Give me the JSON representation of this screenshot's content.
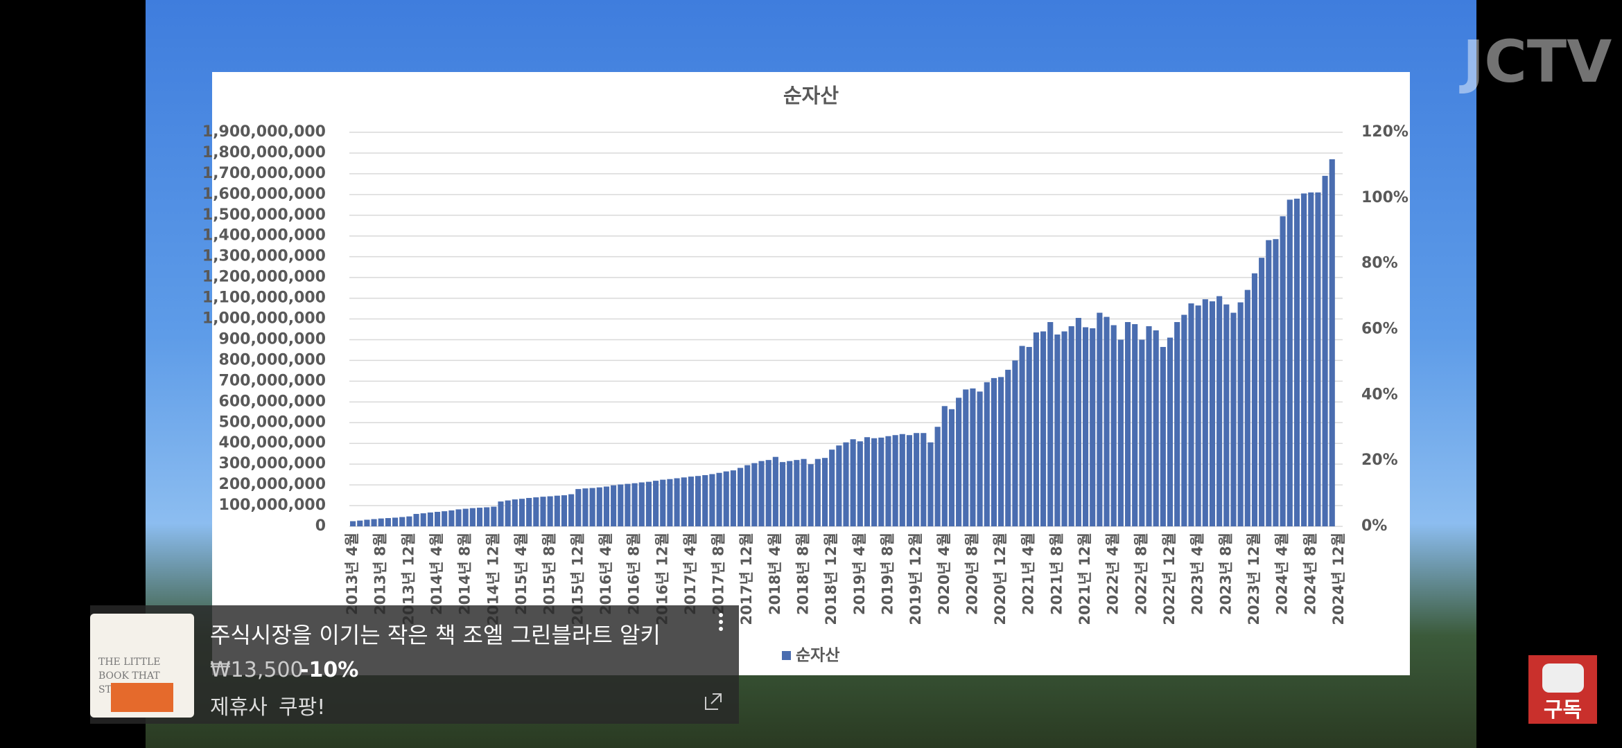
{
  "chart_data": {
    "type": "bar",
    "title": "순자산",
    "categories": [
      "2013년 4월",
      null,
      null,
      null,
      "2013년 8월",
      null,
      null,
      null,
      "2013년 12월",
      null,
      null,
      null,
      "2014년 4월",
      null,
      null,
      null,
      "2014년 8월",
      null,
      null,
      null,
      "2014년 12월",
      null,
      null,
      null,
      "2015년 4월",
      null,
      null,
      null,
      "2015년 8월",
      null,
      null,
      null,
      "2015년 12월",
      null,
      null,
      null,
      "2016년 4월",
      null,
      null,
      null,
      "2016년 8월",
      null,
      null,
      null,
      "2016년 12월",
      null,
      null,
      null,
      "2017년 4월",
      null,
      null,
      null,
      "2017년 8월",
      null,
      null,
      null,
      "2017년 12월",
      null,
      null,
      null,
      "2018년 4월",
      null,
      null,
      null,
      "2018년 8월",
      null,
      null,
      null,
      "2018년 12월",
      null,
      null,
      null,
      "2019년 4월",
      null,
      null,
      null,
      "2019년 8월",
      null,
      null,
      null,
      "2019년 12월",
      null,
      null,
      null,
      "2020년 4월",
      null,
      null,
      null,
      "2020년 8월",
      null,
      null,
      null,
      "2020년 12월",
      null,
      null,
      null,
      "2021년 4월",
      null,
      null,
      null,
      "2021년 8월",
      null,
      null,
      null,
      "2021년 12월",
      null,
      null,
      null,
      "2022년 4월",
      null,
      null,
      null,
      "2022년 8월",
      null,
      null,
      null,
      "2022년 12월",
      null,
      null,
      null,
      "2023년 4월",
      null,
      null,
      null,
      "2023년 8월",
      null,
      null,
      null,
      "2023년 12월",
      null,
      null,
      null,
      "2024년 4월",
      null,
      null,
      null,
      "2024년 8월",
      null,
      null,
      null,
      "2024년 12월"
    ],
    "series": [
      {
        "name": "순자산",
        "color": "#4a6db0",
        "values": [
          25000000,
          28000000,
          32000000,
          35000000,
          38000000,
          40000000,
          42000000,
          45000000,
          48000000,
          60000000,
          63000000,
          67000000,
          70000000,
          73000000,
          77000000,
          82000000,
          85000000,
          88000000,
          90000000,
          92000000,
          95000000,
          120000000,
          125000000,
          130000000,
          133000000,
          137000000,
          140000000,
          143000000,
          145000000,
          148000000,
          150000000,
          155000000,
          180000000,
          183000000,
          185000000,
          188000000,
          192000000,
          198000000,
          202000000,
          205000000,
          208000000,
          212000000,
          215000000,
          220000000,
          225000000,
          228000000,
          232000000,
          236000000,
          240000000,
          243000000,
          247000000,
          252000000,
          258000000,
          265000000,
          270000000,
          282000000,
          295000000,
          305000000,
          315000000,
          320000000,
          335000000,
          310000000,
          315000000,
          320000000,
          325000000,
          300000000,
          325000000,
          330000000,
          370000000,
          390000000,
          405000000,
          420000000,
          410000000,
          430000000,
          425000000,
          428000000,
          435000000,
          440000000,
          445000000,
          440000000,
          450000000,
          450000000,
          405000000,
          480000000,
          580000000,
          565000000,
          620000000,
          660000000,
          665000000,
          650000000,
          695000000,
          715000000,
          720000000,
          755000000,
          800000000,
          870000000,
          865000000,
          935000000,
          940000000,
          985000000,
          925000000,
          940000000,
          965000000,
          1005000000,
          960000000,
          955000000,
          1030000000,
          1010000000,
          970000000,
          900000000,
          985000000,
          975000000,
          900000000,
          965000000,
          945000000,
          865000000,
          910000000,
          985000000,
          1020000000,
          1075000000,
          1065000000,
          1095000000,
          1085000000,
          1110000000,
          1070000000,
          1030000000,
          1080000000,
          1140000000,
          1220000000,
          1295000000,
          1380000000,
          1385000000,
          1495000000,
          1575000000,
          1580000000,
          1605000000,
          1610000000,
          1610000000,
          1690000000,
          1770000000,
          null
        ]
      }
    ],
    "ylim": [
      0,
      1900000000
    ],
    "yticks": [
      0,
      {
        "value": 100000000,
        "label": "100,000,000"
      },
      {
        "value": 200000000,
        "label": "200,000,000"
      },
      {
        "value": 300000000,
        "label": "300,000,000"
      },
      {
        "value": 400000000,
        "label": "400,000,000"
      },
      {
        "value": 500000000,
        "label": "500,000,000"
      },
      {
        "value": 600000000,
        "label": "600,000,000"
      },
      {
        "value": 700000000,
        "label": "700,000,000"
      },
      {
        "value": 800000000,
        "label": "800,000,000"
      },
      {
        "value": 900000000,
        "label": "900,000,000"
      },
      {
        "value": 1000000000,
        "label": "1,000,000,000"
      },
      {
        "value": 1100000000,
        "label": "1,100,000,000"
      },
      {
        "value": 1200000000,
        "label": "1,200,000,000"
      },
      {
        "value": 1300000000,
        "label": "1,300,000,000"
      },
      {
        "value": 1400000000,
        "label": "1,400,000,000"
      },
      {
        "value": 1500000000,
        "label": "1,500,000,000"
      },
      {
        "value": 1600000000,
        "label": "1,600,000,000"
      },
      {
        "value": 1700000000,
        "label": "1,700,000,000"
      },
      {
        "value": 1800000000,
        "label": "1,800,000,000"
      },
      {
        "value": 1900000000,
        "label": "1,900,000,000"
      }
    ],
    "y2lim": [
      0,
      120
    ],
    "y2ticks": [
      {
        "value": 0,
        "label": "0%"
      },
      {
        "value": 20,
        "label": "20%"
      },
      {
        "value": 40,
        "label": "40%"
      },
      {
        "value": 60,
        "label": "60%"
      },
      {
        "value": 80,
        "label": "80%"
      },
      {
        "value": 100,
        "label": "100%"
      },
      {
        "value": 120,
        "label": "120%"
      }
    ],
    "grid": true,
    "legend": "bottom"
  },
  "watermark": "JCTV",
  "ad": {
    "thumbnail_text": "THE LITTLE BOOK THAT STILL BEATS",
    "title": "주식시장을 이기는 작은 책 조엘 그린블라트 알키",
    "price": "₩13,500",
    "discount": "-10%",
    "label": "제휴사",
    "store": "쿠팡!"
  },
  "subscribe": "구독"
}
